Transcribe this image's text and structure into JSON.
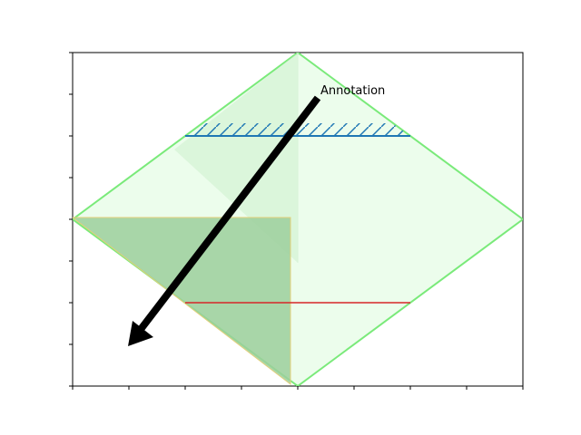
{
  "annotation": {
    "text": "Annotation"
  },
  "colors": {
    "diamond_stroke": "#7aea7a",
    "diamond_fill": "#ecfdec",
    "triangle_fill": "#9ccf9c",
    "triangle_stroke": "#e3d07a",
    "hatch_line": "#1f77b4",
    "red_line": "#d62728",
    "arrow": "#000000",
    "background": "#ffffff"
  }
}
